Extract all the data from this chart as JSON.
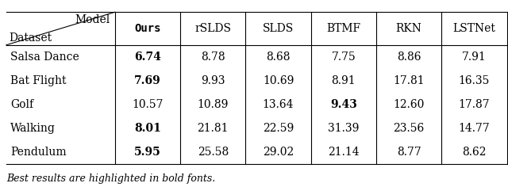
{
  "columns": [
    "Ours",
    "rSLDS",
    "SLDS",
    "BTMF",
    "RKN",
    "LSTNet"
  ],
  "rows": [
    "Salsa Dance",
    "Bat Flight",
    "Golf",
    "Walking",
    "Pendulum"
  ],
  "data": [
    [
      "6.74",
      "8.78",
      "8.68",
      "7.75",
      "8.86",
      "7.91"
    ],
    [
      "7.69",
      "9.93",
      "10.69",
      "8.91",
      "17.81",
      "16.35"
    ],
    [
      "10.57",
      "10.89",
      "13.64",
      "9.43",
      "12.60",
      "17.87"
    ],
    [
      "8.01",
      "21.81",
      "22.59",
      "31.39",
      "23.56",
      "14.77"
    ],
    [
      "5.95",
      "25.58",
      "29.02",
      "21.14",
      "8.77",
      "8.62"
    ]
  ],
  "bold": [
    [
      true,
      false,
      false,
      false,
      false,
      false
    ],
    [
      true,
      false,
      false,
      false,
      false,
      false
    ],
    [
      false,
      false,
      false,
      true,
      false,
      false
    ],
    [
      true,
      false,
      false,
      false,
      false,
      false
    ],
    [
      true,
      false,
      false,
      false,
      false,
      false
    ]
  ],
  "caption": "Best results are highlighted in bold fonts.",
  "header_label_model": "Model",
  "header_label_dataset": "Dataset",
  "fig_width": 6.4,
  "fig_height": 2.36,
  "font_size": 10,
  "caption_font_size": 9
}
